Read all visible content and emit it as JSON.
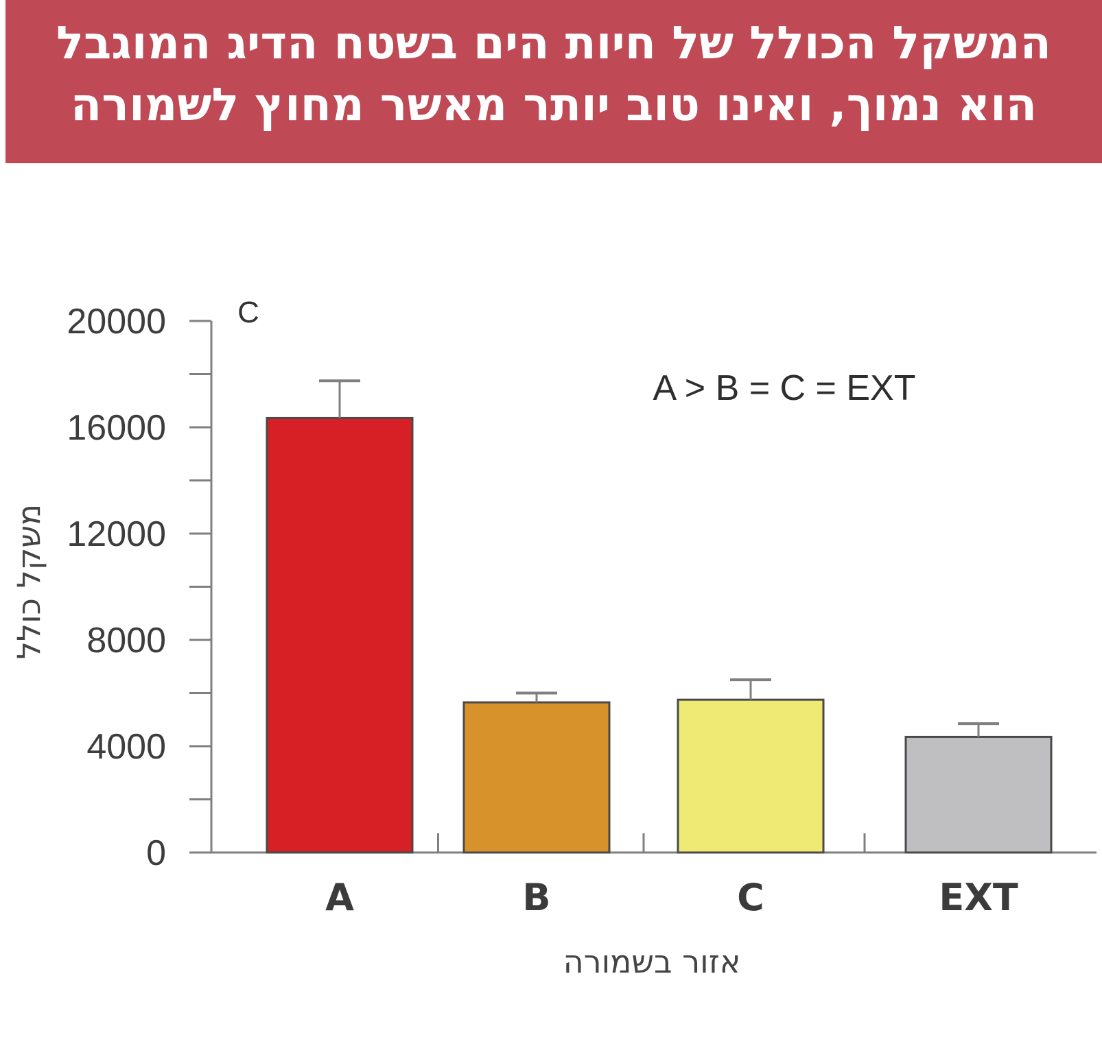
{
  "title": {
    "line1": "המשקל הכולל של חיות הים בשטח הדיג המוגבל",
    "line2": "הוא נמוך, ואינו טוב יותר מאשר מחוץ לשמורה"
  },
  "colors": {
    "banner": "#bf4a55",
    "axis": "#7f7f7f",
    "bar_outline": "#4a4a4a"
  },
  "chart_data": {
    "type": "bar",
    "panel_label": "C",
    "annotation": "A > B = C = EXT",
    "xlabel": "אזור בשמורה",
    "ylabel": "משקל כולל",
    "ylim": [
      0,
      20000
    ],
    "yticks": [
      0,
      4000,
      8000,
      12000,
      16000,
      20000
    ],
    "y_minor_tick_step": 2000,
    "categories": [
      "A",
      "B",
      "C",
      "EXT"
    ],
    "values": [
      16350,
      5650,
      5750,
      4350
    ],
    "error_upper": [
      17750,
      6000,
      6500,
      4850
    ],
    "bar_colors": [
      "#d71f26",
      "#d8922b",
      "#eeea74",
      "#bfbfc1"
    ],
    "grid": false,
    "legend": "none"
  }
}
